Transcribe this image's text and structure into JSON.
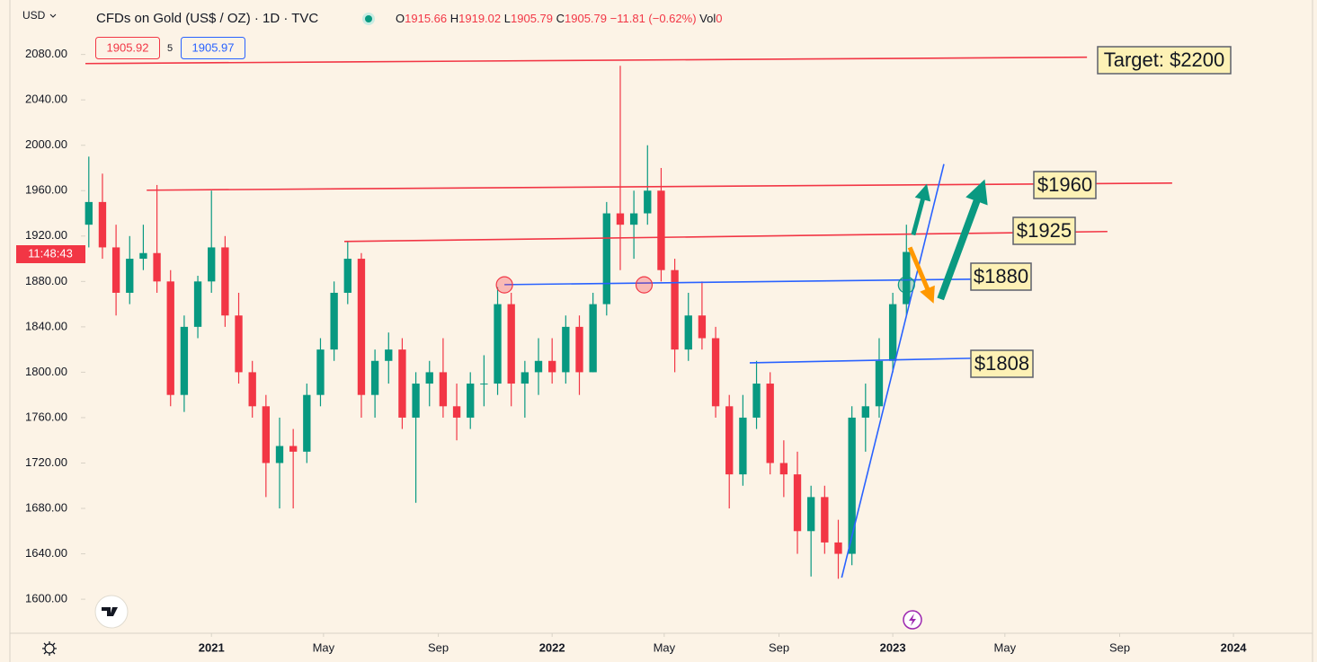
{
  "chart_data": {
    "type": "candlestick",
    "title": "CFDs on Gold (US$ / OZ) · 1D · TVC",
    "currency": "USD",
    "ohlc_labels": [
      "O",
      "H",
      "L",
      "C"
    ],
    "last_ohlc": [
      "1915.66",
      "1919.02",
      "1905.79",
      "1905.79"
    ],
    "change": "−11.81 (−0.62%)",
    "volume_label": "Vol",
    "volume": "0",
    "bid": "1905.92",
    "spread": "5",
    "ask": "1905.97",
    "countdown": "11:48:43",
    "up_color": "#089981",
    "down_color": "#f23645",
    "xlim": [
      2020.63,
      2024.232
    ],
    "xticks": [
      2021,
      {
        "value": 2021.329,
        "label": "May"
      },
      {
        "value": 2021.666,
        "label": "Sep"
      },
      2022,
      {
        "value": 2022.329,
        "label": "May"
      },
      {
        "value": 2022.666,
        "label": "Sep"
      },
      2023,
      {
        "value": 2023.329,
        "label": "May"
      },
      {
        "value": 2023.666,
        "label": "Sep"
      },
      2024
    ],
    "ylim": [
      1570,
      2128
    ],
    "yticks": [
      {
        "value": 1600,
        "label": "1600.00"
      },
      {
        "value": 1640,
        "label": "1640.00"
      },
      {
        "value": 1680,
        "label": "1680.00"
      },
      {
        "value": 1720,
        "label": "1720.00"
      },
      {
        "value": 1760,
        "label": "1760.00"
      },
      {
        "value": 1800,
        "label": "1800.00"
      },
      {
        "value": 1840,
        "label": "1840.00"
      },
      {
        "value": 1880,
        "label": "1880.00"
      },
      {
        "value": 1920,
        "label": "1920.00"
      },
      {
        "value": 1960,
        "label": "1960.00"
      },
      {
        "value": 2000,
        "label": "2000.00"
      },
      {
        "value": 2040,
        "label": "2040.00"
      },
      {
        "value": 2080,
        "label": "2080.00"
      }
    ],
    "x": [
      2020.64,
      2020.68,
      2020.72,
      2020.76,
      2020.8,
      2020.84,
      2020.88,
      2020.92,
      2020.96,
      2021.0,
      2021.04,
      2021.08,
      2021.12,
      2021.16,
      2021.2,
      2021.24,
      2021.28,
      2021.32,
      2021.36,
      2021.4,
      2021.44,
      2021.48,
      2021.52,
      2021.56,
      2021.6,
      2021.64,
      2021.68,
      2021.72,
      2021.76,
      2021.8,
      2021.84,
      2021.88,
      2021.92,
      2021.96,
      2022.0,
      2022.04,
      2022.08,
      2022.12,
      2022.16,
      2022.2,
      2022.24,
      2022.28,
      2022.32,
      2022.36,
      2022.4,
      2022.44,
      2022.48,
      2022.52,
      2022.56,
      2022.6,
      2022.64,
      2022.68,
      2022.72,
      2022.76,
      2022.8,
      2022.84,
      2022.88,
      2022.92,
      2022.96,
      2023.0,
      2023.04
    ],
    "open": [
      1930,
      1950,
      1910,
      1870,
      1900,
      1905,
      1880,
      1780,
      1840,
      1880,
      1910,
      1850,
      1800,
      1770,
      1720,
      1735,
      1730,
      1780,
      1820,
      1870,
      1900,
      1780,
      1810,
      1820,
      1760,
      1790,
      1800,
      1770,
      1760,
      1790,
      1790,
      1860,
      1790,
      1800,
      1810,
      1800,
      1840,
      1800,
      1860,
      1940,
      1930,
      1940,
      1960,
      1890,
      1820,
      1850,
      1830,
      1770,
      1710,
      1760,
      1790,
      1720,
      1710,
      1660,
      1690,
      1650,
      1640,
      1760,
      1770,
      1810,
      1860
    ],
    "high": [
      1990,
      1975,
      1930,
      1920,
      1930,
      1965,
      1890,
      1850,
      1885,
      1960,
      1920,
      1870,
      1810,
      1780,
      1760,
      1750,
      1790,
      1830,
      1880,
      1915,
      1905,
      1820,
      1835,
      1830,
      1800,
      1810,
      1830,
      1790,
      1800,
      1815,
      1875,
      1870,
      1810,
      1830,
      1830,
      1850,
      1850,
      1870,
      1950,
      2070,
      1960,
      2000,
      1980,
      1900,
      1870,
      1880,
      1840,
      1780,
      1780,
      1810,
      1800,
      1740,
      1730,
      1700,
      1700,
      1670,
      1770,
      1790,
      1830,
      1870,
      1930
    ],
    "low": [
      1910,
      1900,
      1850,
      1860,
      1890,
      1870,
      1770,
      1765,
      1830,
      1870,
      1840,
      1790,
      1760,
      1690,
      1680,
      1680,
      1720,
      1770,
      1810,
      1860,
      1760,
      1760,
      1790,
      1750,
      1685,
      1770,
      1760,
      1740,
      1750,
      1770,
      1780,
      1770,
      1760,
      1780,
      1790,
      1790,
      1780,
      1800,
      1850,
      1890,
      1900,
      1930,
      1880,
      1800,
      1810,
      1820,
      1760,
      1680,
      1700,
      1750,
      1710,
      1690,
      1640,
      1620,
      1640,
      1618,
      1630,
      1730,
      1760,
      1800,
      1850
    ],
    "close": [
      1950,
      1910,
      1870,
      1900,
      1905,
      1880,
      1780,
      1840,
      1880,
      1910,
      1850,
      1800,
      1770,
      1720,
      1735,
      1730,
      1780,
      1820,
      1870,
      1900,
      1780,
      1810,
      1820,
      1760,
      1790,
      1800,
      1770,
      1760,
      1790,
      1790,
      1860,
      1790,
      1800,
      1810,
      1800,
      1840,
      1800,
      1860,
      1940,
      1930,
      1940,
      1960,
      1890,
      1820,
      1850,
      1830,
      1770,
      1710,
      1760,
      1790,
      1720,
      1710,
      1660,
      1690,
      1650,
      1640,
      1760,
      1770,
      1810,
      1860,
      1906
    ],
    "annotations": [
      {
        "kind": "line",
        "color": "#f23645",
        "x": [
          2020.63,
          2023.57
        ],
        "y": [
          2072,
          2077.6
        ],
        "label": "Target: $2200"
      },
      {
        "kind": "line",
        "color": "#f23645",
        "x": [
          2020.81,
          2023.82
        ],
        "y": [
          1960.4,
          1966.7
        ],
        "label": "$1960"
      },
      {
        "kind": "line",
        "color": "#f23645",
        "x": [
          2021.39,
          2023.63
        ],
        "y": [
          1915.2,
          1924
        ],
        "label": "$1925"
      },
      {
        "kind": "line",
        "color": "#2962ff",
        "x": [
          2021.86,
          2023.24
        ],
        "y": [
          1877.2,
          1882
        ],
        "label": "$1880"
      },
      {
        "kind": "line",
        "color": "#2962ff",
        "x": [
          2022.58,
          2023.23
        ],
        "y": [
          1808.3,
          1812.3
        ],
        "label": "$1808"
      },
      {
        "kind": "line",
        "color": "#2962ff",
        "x": [
          2022.85,
          2023.15
        ],
        "y": [
          1619,
          1983.4
        ]
      },
      {
        "kind": "arrow",
        "color": "#0a9981",
        "x": [
          2023.06,
          2023.1
        ],
        "y": [
          1921,
          1966
        ]
      },
      {
        "kind": "arrow",
        "color": "#0a9981",
        "x": [
          2023.14,
          2023.27
        ],
        "y": [
          1864.5,
          1970
        ]
      },
      {
        "kind": "arrow",
        "color": "#ff9800",
        "x": [
          2023.05,
          2023.12
        ],
        "y": [
          1910,
          1860.6
        ]
      },
      {
        "kind": "marker",
        "color": "#f23645",
        "x": [
          2021.86
        ],
        "y": [
          1877
        ]
      },
      {
        "kind": "marker",
        "color": "#f23645",
        "x": [
          2022.27
        ],
        "y": [
          1877
        ]
      },
      {
        "kind": "marker",
        "color": "#089981",
        "x": [
          2023.04
        ],
        "y": [
          1877
        ]
      }
    ]
  }
}
